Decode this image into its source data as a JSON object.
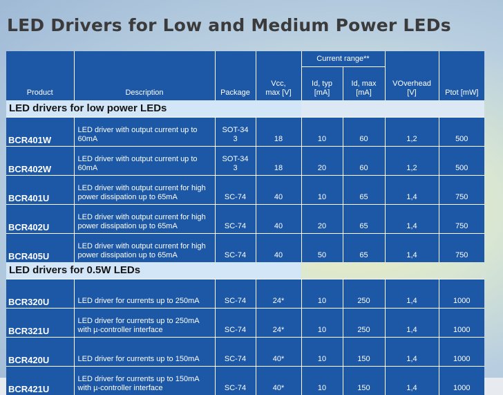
{
  "title": "LED Drivers for Low and Medium Power LEDs",
  "headers": {
    "product": "Product",
    "description": "Description",
    "package": "Package",
    "vcc": "Vcc,\nmax  [V]",
    "current_range": "Current range**",
    "id_typ": "Id, typ\n[mA]",
    "id_max": "Id, max\n[mA]",
    "voverhead": "VOverhead\n[V]",
    "ptot": "Ptot [mW]"
  },
  "sections": [
    {
      "label": "LED drivers for low power LEDs",
      "rows": [
        {
          "product": "BCR401W",
          "description": "LED driver with output current up to 60mA",
          "package": "SOT-34\n3",
          "vcc": "18",
          "id_typ": "10",
          "id_max": "60",
          "voverhead": "1,2",
          "ptot": "500"
        },
        {
          "product": "BCR402W",
          "description": "LED driver with output current up to 60mA",
          "package": "SOT-34\n3",
          "vcc": "18",
          "id_typ": "20",
          "id_max": "60",
          "voverhead": "1,2",
          "ptot": "500"
        },
        {
          "product": "BCR401U",
          "description": "LED driver with output current for high power dissipation up to 65mA",
          "package": "SC-74",
          "vcc": "40",
          "id_typ": "10",
          "id_max": "65",
          "voverhead": "1,4",
          "ptot": "750"
        },
        {
          "product": "BCR402U",
          "description": "LED driver with output current for high power dissipation up to 65mA",
          "package": "SC-74",
          "vcc": "40",
          "id_typ": "20",
          "id_max": "65",
          "voverhead": "1,4",
          "ptot": "750"
        },
        {
          "product": "BCR405U",
          "description": "LED driver with output current for high power dissipation up to 65mA",
          "package": "SC-74",
          "vcc": "40",
          "id_typ": "50",
          "id_max": "65",
          "voverhead": "1,4",
          "ptot": "750"
        }
      ]
    },
    {
      "label": "LED drivers for 0.5W LEDs",
      "rows": [
        {
          "product": "BCR320U",
          "description": "LED driver for currents up to 250mA",
          "package": "SC-74",
          "vcc": "24*",
          "id_typ": "10",
          "id_max": "250",
          "voverhead": "1,4",
          "ptot": "1000"
        },
        {
          "product": "BCR321U",
          "description": "LED driver for currents up to 250mA with µ-controller interface",
          "package": "SC-74",
          "vcc": "24*",
          "id_typ": "10",
          "id_max": "250",
          "voverhead": "1,4",
          "ptot": "1000"
        },
        {
          "product": "BCR420U",
          "description": "LED driver for currents up to 150mA",
          "package": "SC-74",
          "vcc": "40*",
          "id_typ": "10",
          "id_max": "150",
          "voverhead": "1,4",
          "ptot": "1000"
        },
        {
          "product": "BCR421U",
          "description": "LED driver for currents up to 150mA with µ-controller interface",
          "package": "SC-74",
          "vcc": "40*",
          "id_typ": "10",
          "id_max": "150",
          "voverhead": "1,4",
          "ptot": "1000"
        }
      ]
    }
  ]
}
